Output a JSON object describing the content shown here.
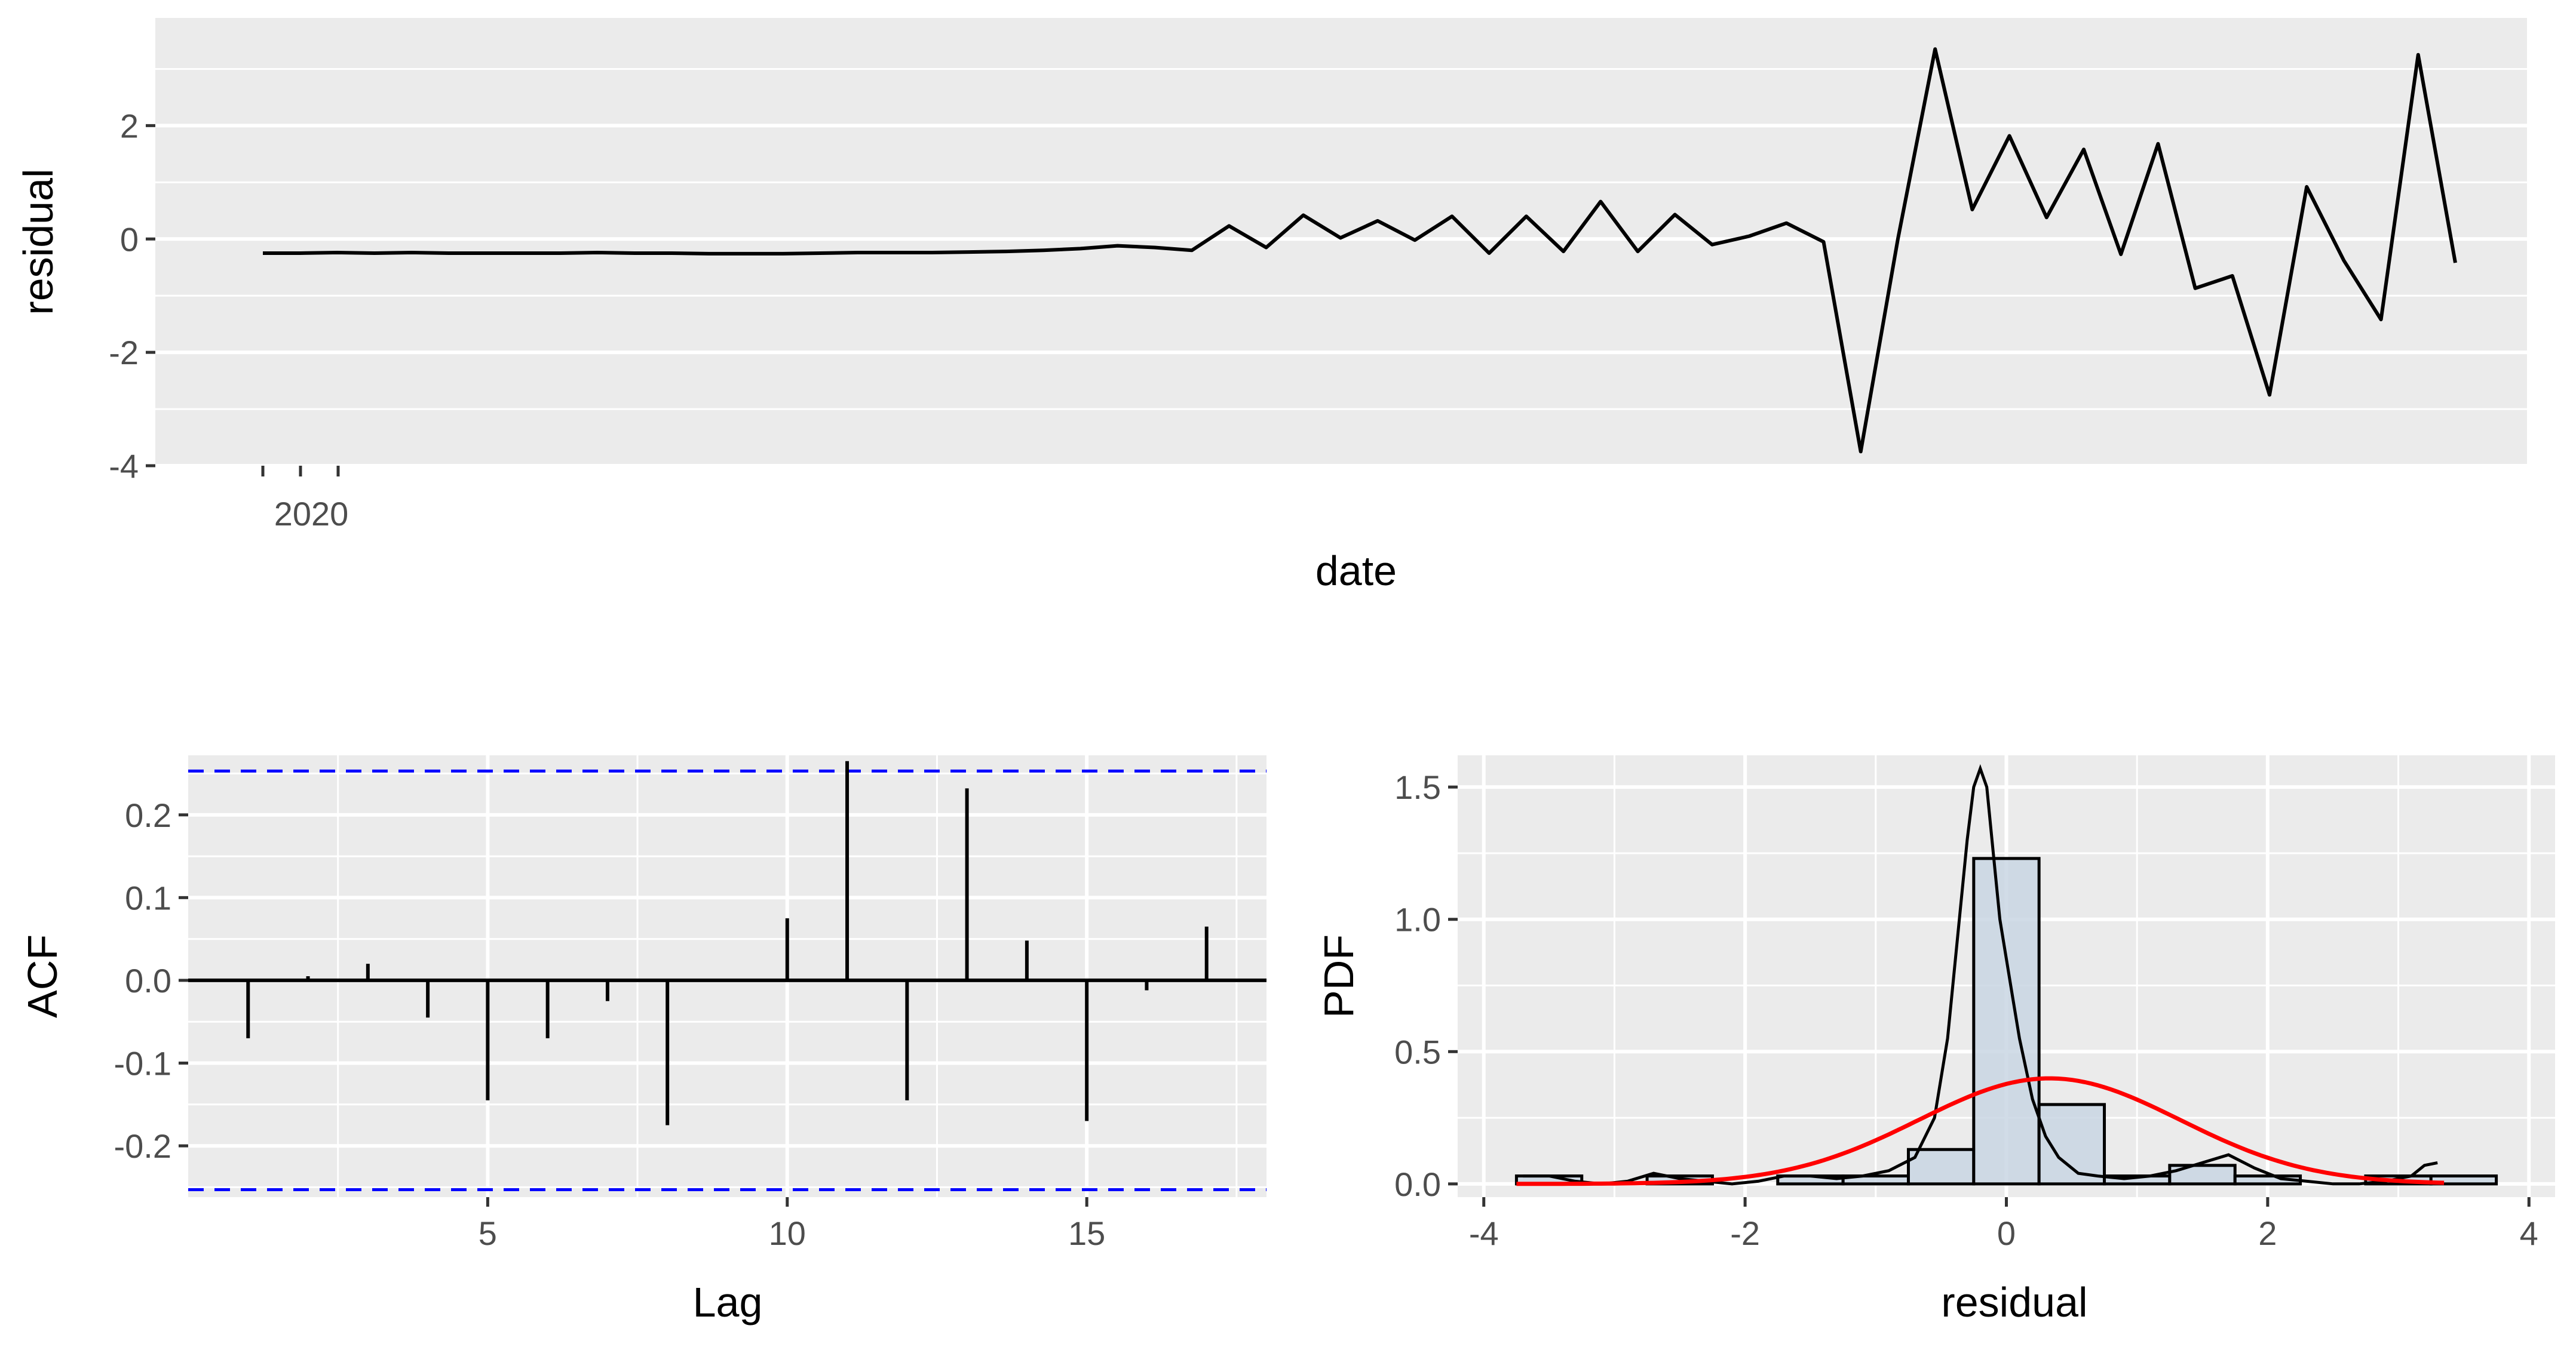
{
  "chart_data": [
    {
      "type": "line",
      "panel": "top",
      "xlabel": "date",
      "ylabel": "residual",
      "xticks": [
        {
          "label": "2020",
          "index": 2
        }
      ],
      "minor_tick_indices": [
        0,
        1,
        2
      ],
      "ylim": [
        -4,
        3.9
      ],
      "yticks": [
        -4,
        -2,
        0,
        2
      ],
      "grid": true,
      "series": [
        {
          "values": [
            -0.25,
            -0.25,
            -0.24,
            -0.25,
            -0.24,
            -0.25,
            -0.25,
            -0.25,
            -0.25,
            -0.24,
            -0.25,
            -0.25,
            -0.26,
            -0.26,
            -0.26,
            -0.25,
            -0.24,
            -0.24,
            -0.24,
            -0.23,
            -0.22,
            -0.2,
            -0.17,
            -0.12,
            -0.15,
            -0.2,
            0.23,
            -0.15,
            0.42,
            0.02,
            0.32,
            -0.02,
            0.4,
            -0.25,
            0.4,
            -0.22,
            0.66,
            -0.22,
            0.43,
            -0.1,
            0.05,
            0.28,
            -0.05,
            -3.75,
            0.0,
            3.35,
            0.52,
            1.82,
            0.38,
            1.58,
            -0.27,
            1.68,
            -0.87,
            -0.65,
            -2.75,
            0.92,
            -0.38,
            -1.42,
            3.25,
            -0.42
          ]
        }
      ]
    },
    {
      "type": "bar",
      "panel": "bottom-left",
      "xlabel": "Lag",
      "ylabel": "ACF",
      "xlim": [
        0,
        18
      ],
      "ylim": [
        -0.262,
        0.272
      ],
      "xticks": [
        5,
        10,
        15
      ],
      "yticks": [
        -0.2,
        -0.1,
        0.0,
        0.1,
        0.2
      ],
      "ytick_labels": [
        "-0.2",
        "-0.1",
        "0.0",
        "0.1",
        "0.2"
      ],
      "confidence_limits": [
        0.253,
        -0.253
      ],
      "grid": true,
      "lags": [
        1,
        2,
        3,
        4,
        5,
        6,
        7,
        8,
        9,
        10,
        11,
        12,
        13,
        14,
        15,
        16,
        17
      ],
      "values": [
        -0.07,
        0.005,
        0.02,
        -0.045,
        -0.145,
        -0.07,
        -0.025,
        -0.175,
        0.002,
        0.075,
        0.265,
        -0.145,
        0.232,
        0.048,
        -0.17,
        -0.012,
        0.065
      ],
      "colors": {
        "bars": "#000000",
        "confidence": "#0000ff"
      }
    },
    {
      "type": "bar",
      "panel": "bottom-right",
      "xlabel": "residual",
      "ylabel": "PDF",
      "xlim": [
        -4.2,
        4.2
      ],
      "ylim": [
        -0.05,
        1.62
      ],
      "xticks": [
        -4,
        -2,
        0,
        2,
        4
      ],
      "yticks": [
        0.0,
        0.5,
        1.0,
        1.5
      ],
      "ytick_labels": [
        "0.0",
        "0.5",
        "1.0",
        "1.5"
      ],
      "grid": true,
      "histogram": {
        "bin_width": 0.5,
        "bin_starts": [
          -3.75,
          -3.25,
          -2.75,
          -2.25,
          -1.75,
          -1.25,
          -0.75,
          -0.25,
          0.25,
          0.75,
          1.25,
          1.75,
          2.25,
          2.75,
          3.25
        ],
        "density": [
          0.03,
          0.0,
          0.03,
          0.0,
          0.03,
          0.03,
          0.13,
          1.23,
          0.3,
          0.03,
          0.07,
          0.03,
          0.0,
          0.03,
          0.03
        ],
        "fill": "#c9d6e3",
        "stroke": "#000000"
      },
      "density_curve": {
        "x": [
          -3.7,
          -3.5,
          -3.3,
          -3.1,
          -2.9,
          -2.7,
          -2.5,
          -2.3,
          -2.1,
          -1.9,
          -1.7,
          -1.5,
          -1.3,
          -1.1,
          -0.9,
          -0.7,
          -0.55,
          -0.45,
          -0.38,
          -0.3,
          -0.25,
          -0.2,
          -0.15,
          -0.1,
          -0.05,
          0.0,
          0.05,
          0.1,
          0.2,
          0.3,
          0.4,
          0.55,
          0.7,
          0.9,
          1.1,
          1.3,
          1.5,
          1.7,
          1.9,
          2.1,
          2.3,
          2.5,
          2.7,
          2.9,
          3.1,
          3.2,
          3.3
        ],
        "y": [
          0.03,
          0.03,
          0.01,
          0.0,
          0.01,
          0.04,
          0.02,
          0.01,
          0.0,
          0.01,
          0.03,
          0.03,
          0.02,
          0.03,
          0.05,
          0.1,
          0.25,
          0.55,
          0.9,
          1.3,
          1.5,
          1.57,
          1.5,
          1.25,
          1.0,
          0.85,
          0.7,
          0.55,
          0.32,
          0.18,
          0.1,
          0.04,
          0.03,
          0.02,
          0.03,
          0.05,
          0.08,
          0.11,
          0.06,
          0.02,
          0.01,
          0.0,
          0.0,
          0.01,
          0.03,
          0.07,
          0.08
        ],
        "color": "#000000"
      },
      "normal_curve": {
        "mean": 0.33,
        "sd": 1.0,
        "color": "#ff0000",
        "x_range": [
          -3.75,
          3.35
        ]
      }
    }
  ]
}
